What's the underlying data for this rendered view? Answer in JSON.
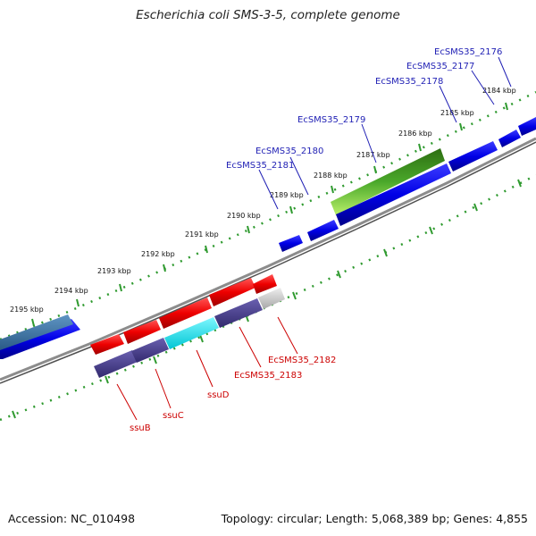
{
  "title": "Escherichia coli SMS-3-5, complete genome",
  "footer": {
    "accession": "Accession: NC_010498",
    "summary": "Topology: circular; Length: 5,068,389 bp; Genes: 4,855"
  },
  "scale": {
    "ticks": [
      {
        "label": "2184 kbp"
      },
      {
        "label": "2185 kbp"
      },
      {
        "label": "2186 kbp"
      },
      {
        "label": "2187 kbp"
      },
      {
        "label": "2188 kbp"
      },
      {
        "label": "2189 kbp"
      },
      {
        "label": "2190 kbp"
      },
      {
        "label": "2191 kbp"
      },
      {
        "label": "2192 kbp"
      },
      {
        "label": "2193 kbp"
      },
      {
        "label": "2194 kbp"
      },
      {
        "label": "2195 kbp"
      }
    ]
  },
  "genes_forward": [
    {
      "label": "EcSMS35_2176"
    },
    {
      "label": "EcSMS35_2177"
    },
    {
      "label": "EcSMS35_2178"
    },
    {
      "label": "EcSMS35_2179"
    },
    {
      "label": "EcSMS35_2180"
    },
    {
      "label": "EcSMS35_2181"
    }
  ],
  "genes_reverse": [
    {
      "label": "EcSMS35_2182"
    },
    {
      "label": "EcSMS35_2183"
    },
    {
      "label": "ssuD"
    },
    {
      "label": "ssuC"
    },
    {
      "label": "ssuB"
    }
  ],
  "colors": {
    "forward_cds": "#0000e6",
    "reverse_cds": "#ee0000",
    "backbone": "#7a7a7a",
    "tick": "#2f9a2f",
    "rrna_green": "#3c9a1e",
    "cyan_block": "#00e5f0",
    "slate_block": "#4a3f8f",
    "teal_block": "#3a6ea0",
    "label_forward": "#1f1fb4",
    "label_reverse": "#cc0000"
  }
}
